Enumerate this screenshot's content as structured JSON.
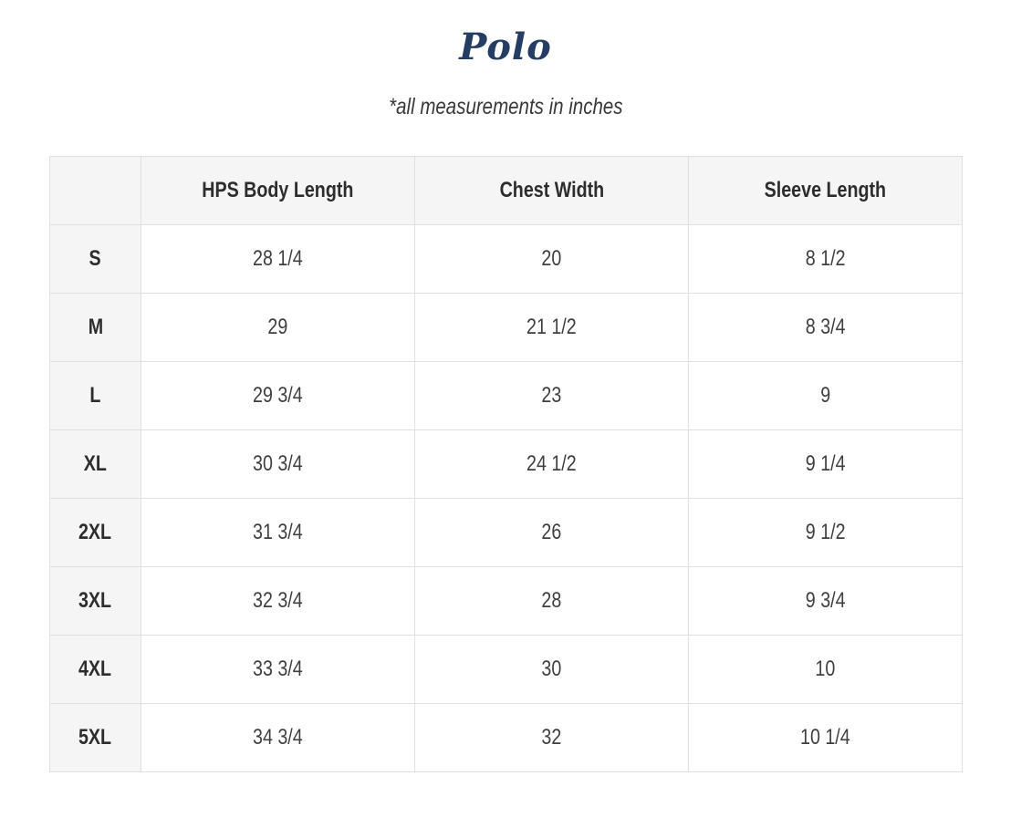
{
  "page": {
    "title": "Polo",
    "subtitle": "*all measurements in inches"
  },
  "colors": {
    "brand_navy": "#253d62",
    "text": "#3f3f3f",
    "header_bg": "#f5f5f5",
    "border": "#e0e0e0",
    "page_bg": "#ffffff"
  },
  "chart_data": {
    "type": "table",
    "title": "Polo",
    "note": "*all measurements in inches",
    "columns": [
      "",
      "HPS Body Length",
      "Chest Width",
      "Sleeve Length"
    ],
    "rows": [
      {
        "size": "S",
        "hps_body_length": "28 1/4",
        "chest_width": "20",
        "sleeve_length": "8 1/2"
      },
      {
        "size": "M",
        "hps_body_length": "29",
        "chest_width": "21 1/2",
        "sleeve_length": "8 3/4"
      },
      {
        "size": "L",
        "hps_body_length": "29 3/4",
        "chest_width": "23",
        "sleeve_length": "9"
      },
      {
        "size": "XL",
        "hps_body_length": "30 3/4",
        "chest_width": "24 1/2",
        "sleeve_length": "9 1/4"
      },
      {
        "size": "2XL",
        "hps_body_length": "31 3/4",
        "chest_width": "26",
        "sleeve_length": "9 1/2"
      },
      {
        "size": "3XL",
        "hps_body_length": "32 3/4",
        "chest_width": "28",
        "sleeve_length": "9 3/4"
      },
      {
        "size": "4XL",
        "hps_body_length": "33 3/4",
        "chest_width": "30",
        "sleeve_length": "10"
      },
      {
        "size": "5XL",
        "hps_body_length": "34 3/4",
        "chest_width": "32",
        "sleeve_length": "10 1/4"
      }
    ]
  }
}
